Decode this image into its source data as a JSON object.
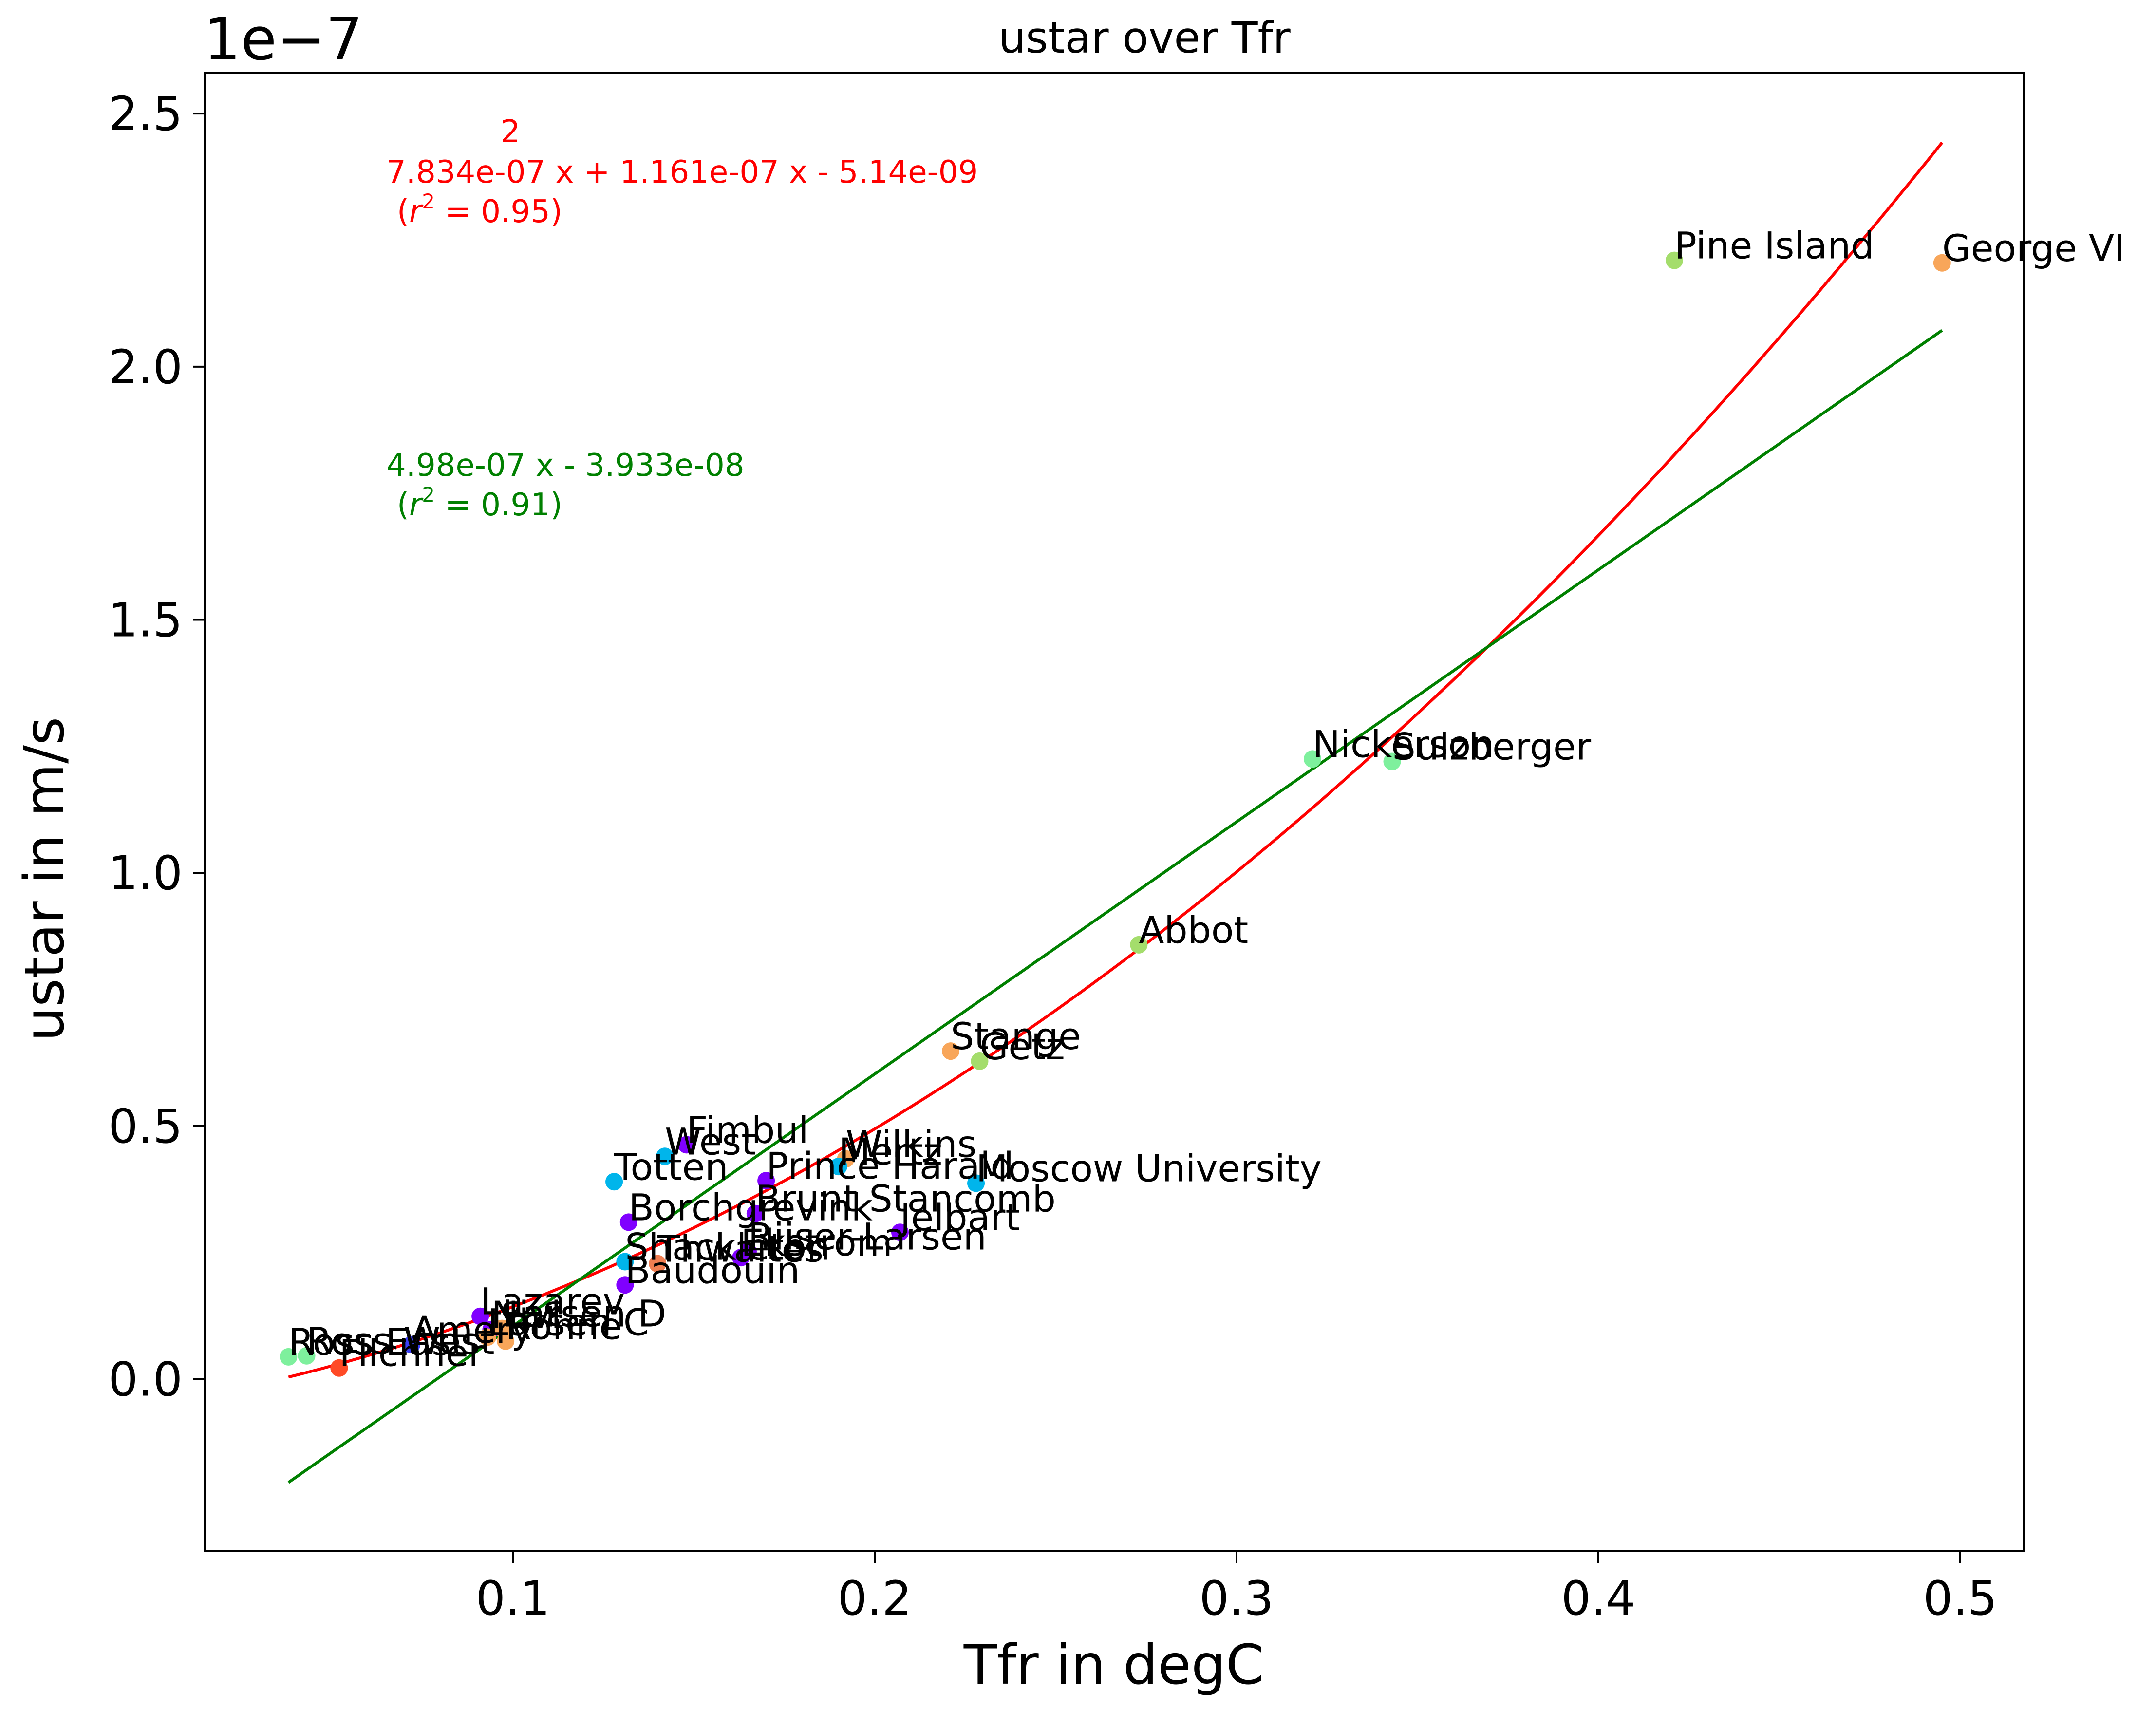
{
  "chart_data": {
    "type": "scatter",
    "title": "ustar over Tfr",
    "xlabel": "Tfr in degC",
    "ylabel": "ustar in m/s",
    "y_offset_label": "1e−7",
    "xlim": [
      0.0148,
      0.5175
    ],
    "ylim": [
      -0.34,
      2.58
    ],
    "y_scale_note": "values in units of 1e-7 m/s",
    "xticks": [
      {
        "value": 0.1,
        "label": "0.1"
      },
      {
        "value": 0.2,
        "label": "0.2"
      },
      {
        "value": 0.3,
        "label": "0.3"
      },
      {
        "value": 0.4,
        "label": "0.4"
      },
      {
        "value": 0.5,
        "label": "0.5"
      }
    ],
    "yticks": [
      {
        "value": 0.0,
        "label": "0.0"
      },
      {
        "value": 0.5,
        "label": "0.5"
      },
      {
        "value": 1.0,
        "label": "1.0"
      },
      {
        "value": 1.5,
        "label": "1.5"
      },
      {
        "value": 2.0,
        "label": "2.0"
      },
      {
        "value": 2.5,
        "label": "2.5"
      }
    ],
    "grid": false,
    "points": [
      {
        "name": "Pine Island",
        "x": 0.421,
        "y": 2.21,
        "color": "#a4dd6c"
      },
      {
        "name": "George VI",
        "x": 0.495,
        "y": 2.205,
        "color": "#f8a65a"
      },
      {
        "name": "Nickerson",
        "x": 0.321,
        "y": 1.225,
        "color": "#7ef09d"
      },
      {
        "name": "Sulzberger",
        "x": 0.343,
        "y": 1.22,
        "color": "#7ef09d"
      },
      {
        "name": "Abbot",
        "x": 0.273,
        "y": 0.858,
        "color": "#a4dd6c"
      },
      {
        "name": "Stange",
        "x": 0.221,
        "y": 0.648,
        "color": "#f8a65a"
      },
      {
        "name": "Getz",
        "x": 0.229,
        "y": 0.628,
        "color": "#a4dd6c"
      },
      {
        "name": "Fimbul",
        "x": 0.148,
        "y": 0.463,
        "color": "#8000ff"
      },
      {
        "name": "West",
        "x": 0.142,
        "y": 0.44,
        "color": "#00b5eb"
      },
      {
        "name": "Wilkins",
        "x": 0.192,
        "y": 0.435,
        "color": "#f8a65a"
      },
      {
        "name": "Mertz",
        "x": 0.19,
        "y": 0.42,
        "color": "#00b5eb"
      },
      {
        "name": "Totten",
        "x": 0.128,
        "y": 0.39,
        "color": "#00b5eb"
      },
      {
        "name": "Prince Harald",
        "x": 0.17,
        "y": 0.392,
        "color": "#8000ff"
      },
      {
        "name": "Moscow University",
        "x": 0.228,
        "y": 0.387,
        "color": "#00b5eb"
      },
      {
        "name": "Brunt Stancomb",
        "x": 0.167,
        "y": 0.327,
        "color": "#8000ff"
      },
      {
        "name": "Borchgrevink",
        "x": 0.132,
        "y": 0.31,
        "color": "#8000ff"
      },
      {
        "name": "Jelbart",
        "x": 0.207,
        "y": 0.29,
        "color": "#8000ff"
      },
      {
        "name": "Riiser-Larsen",
        "x": 0.165,
        "y": 0.252,
        "color": "#8000ff"
      },
      {
        "name": "Ekstrom",
        "x": 0.163,
        "y": 0.24,
        "color": "#8000ff"
      },
      {
        "name": "Shackleton",
        "x": 0.131,
        "y": 0.232,
        "color": "#00b5eb"
      },
      {
        "name": "Thwaites",
        "x": 0.14,
        "y": 0.228,
        "color": "#f07e51"
      },
      {
        "name": "Baudouin",
        "x": 0.131,
        "y": 0.186,
        "color": "#8000ff"
      },
      {
        "name": "Lazarev",
        "x": 0.091,
        "y": 0.124,
        "color": "#8000ff"
      },
      {
        "name": "Nivl",
        "x": 0.094,
        "y": 0.098,
        "color": "#8000ff"
      },
      {
        "name": "Larsen D",
        "x": 0.097,
        "y": 0.1,
        "color": "#f8a65a"
      },
      {
        "name": "Larsen C",
        "x": 0.093,
        "y": 0.083,
        "color": "#f8a65a"
      },
      {
        "name": "Amery",
        "x": 0.072,
        "y": 0.068,
        "color": "#3b40f8"
      },
      {
        "name": "Ross West",
        "x": 0.043,
        "y": 0.046,
        "color": "#7ef09d"
      },
      {
        "name": "Ross East",
        "x": 0.038,
        "y": 0.044,
        "color": "#7ef09d"
      },
      {
        "name": "Filchner",
        "x": 0.052,
        "y": 0.022,
        "color": "#ff4a26"
      },
      {
        "name": "Ronne",
        "x": 0.098,
        "y": 0.075,
        "color": "#f8a65a"
      }
    ],
    "fits": [
      {
        "kind": "quadratic",
        "color": "#ff0000",
        "coef": [
          7.834,
          1.161,
          -0.0514
        ],
        "x_range": [
          0.038,
          0.495
        ],
        "label_exponent": "2",
        "label_equation": "7.834e-07 x + 1.161e-07 x - 5.14e-09",
        "label_r2_value": " = 0.95)"
      },
      {
        "kind": "linear",
        "color": "#008000",
        "coef": [
          4.98,
          -0.3933
        ],
        "x_range": [
          0.038,
          0.495
        ],
        "label_equation": "4.98e-07 x - 3.933e-08",
        "label_r2_value": " = 0.91)"
      }
    ]
  }
}
